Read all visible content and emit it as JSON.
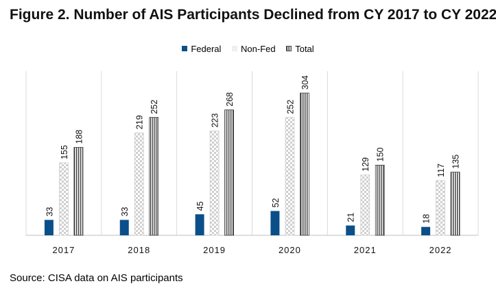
{
  "chart_data": {
    "type": "bar",
    "title": "Figure 2. Number of AIS Participants Declined from CY 2017 to CY 2022",
    "categories": [
      "2017",
      "2018",
      "2019",
      "2020",
      "2021",
      "2022"
    ],
    "series": [
      {
        "name": "Federal",
        "values": [
          33,
          33,
          45,
          52,
          21,
          18
        ],
        "color": "#0b4f8a"
      },
      {
        "name": "Non-Fed",
        "values": [
          155,
          219,
          223,
          252,
          129,
          117
        ],
        "color": "#d0d0d0"
      },
      {
        "name": "Total",
        "values": [
          188,
          252,
          268,
          304,
          150,
          135
        ],
        "color": "#4a4a4a"
      }
    ],
    "xlabel": "",
    "ylabel": "",
    "ylim": [
      0,
      310
    ],
    "legend_position": "top-center",
    "grid": false
  },
  "source": "Source: CISA data on AIS participants"
}
